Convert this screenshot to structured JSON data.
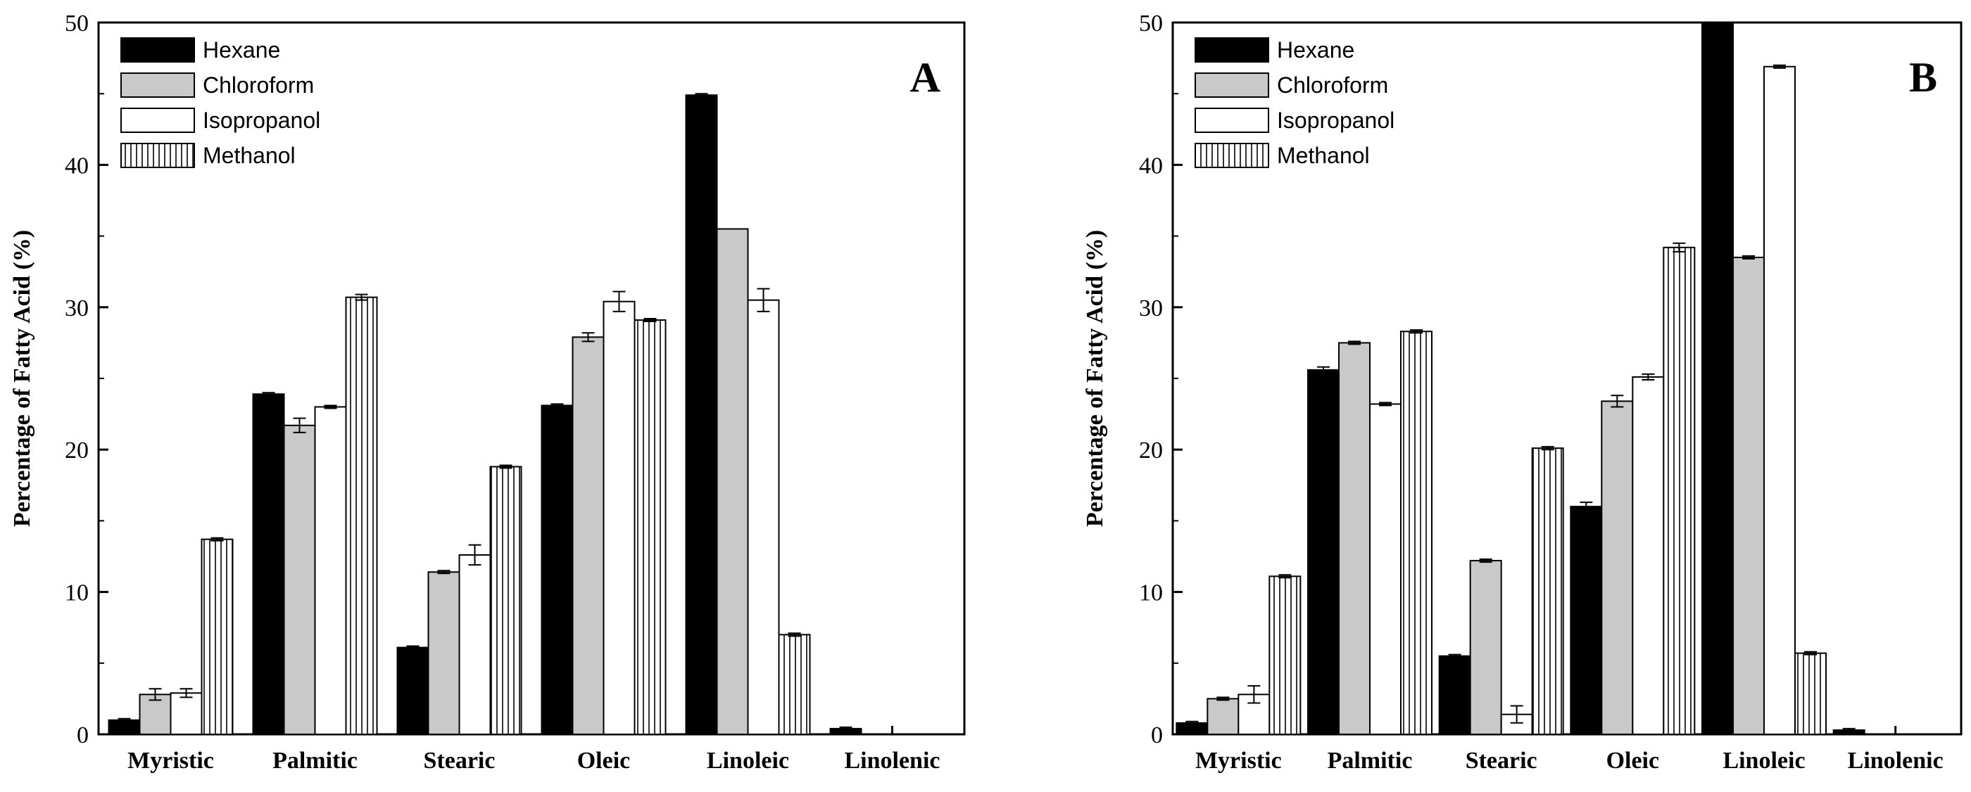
{
  "chart_data": [
    {
      "type": "bar",
      "panel_label": "A",
      "ylabel": "Percentage of Fatty Acid (%)",
      "xlabel": "",
      "ylim": [
        0,
        50
      ],
      "yticks": [
        0,
        10,
        20,
        30,
        40,
        50
      ],
      "categories": [
        "Myristic",
        "Palmitic",
        "Stearic",
        "Oleic",
        "Linoleic",
        "Linolenic"
      ],
      "legend_position": "top-left",
      "series": [
        {
          "name": "Hexane",
          "values": [
            1.0,
            23.9,
            6.1,
            23.1,
            44.9,
            0.4
          ],
          "errors": [
            0.1,
            0.1,
            0.1,
            0.1,
            0.1,
            0.1
          ]
        },
        {
          "name": "Chloroform",
          "values": [
            2.8,
            21.7,
            11.4,
            27.9,
            35.5,
            0
          ],
          "errors": [
            0.4,
            0.5,
            0.1,
            0.3,
            0,
            0
          ]
        },
        {
          "name": "Isopropanol",
          "values": [
            2.9,
            23.0,
            12.6,
            30.4,
            30.5,
            0
          ],
          "errors": [
            0.3,
            0.1,
            0.7,
            0.7,
            0.8,
            0
          ]
        },
        {
          "name": "Methanol",
          "values": [
            13.7,
            30.7,
            18.8,
            29.1,
            7.0,
            0
          ],
          "errors": [
            0.1,
            0.2,
            0.1,
            0.1,
            0.1,
            0
          ]
        }
      ]
    },
    {
      "type": "bar",
      "panel_label": "B",
      "ylabel": "Percentage of Fatty Acid (%)",
      "xlabel": "",
      "ylim": [
        0,
        50
      ],
      "yticks": [
        0,
        10,
        20,
        30,
        40,
        50
      ],
      "categories": [
        "Myristic",
        "Palmitic",
        "Stearic",
        "Oleic",
        "Linoleic",
        "Linolenic"
      ],
      "legend_position": "top-left",
      "series": [
        {
          "name": "Hexane",
          "values": [
            0.8,
            25.6,
            5.5,
            16.0,
            50.0,
            0.3
          ],
          "errors": [
            0.1,
            0.2,
            0.1,
            0.3,
            0,
            0.1
          ]
        },
        {
          "name": "Chloroform",
          "values": [
            2.5,
            27.5,
            12.2,
            23.4,
            33.5,
            0
          ],
          "errors": [
            0.1,
            0.1,
            0.1,
            0.4,
            0.1,
            0
          ]
        },
        {
          "name": "Isopropanol",
          "values": [
            2.8,
            23.2,
            1.4,
            25.1,
            46.9,
            0
          ],
          "errors": [
            0.6,
            0.1,
            0.6,
            0.2,
            0.1,
            0
          ]
        },
        {
          "name": "Methanol",
          "values": [
            11.1,
            28.3,
            20.1,
            34.2,
            5.7,
            0
          ],
          "errors": [
            0.1,
            0.1,
            0.1,
            0.3,
            0.1,
            0
          ]
        }
      ]
    }
  ]
}
